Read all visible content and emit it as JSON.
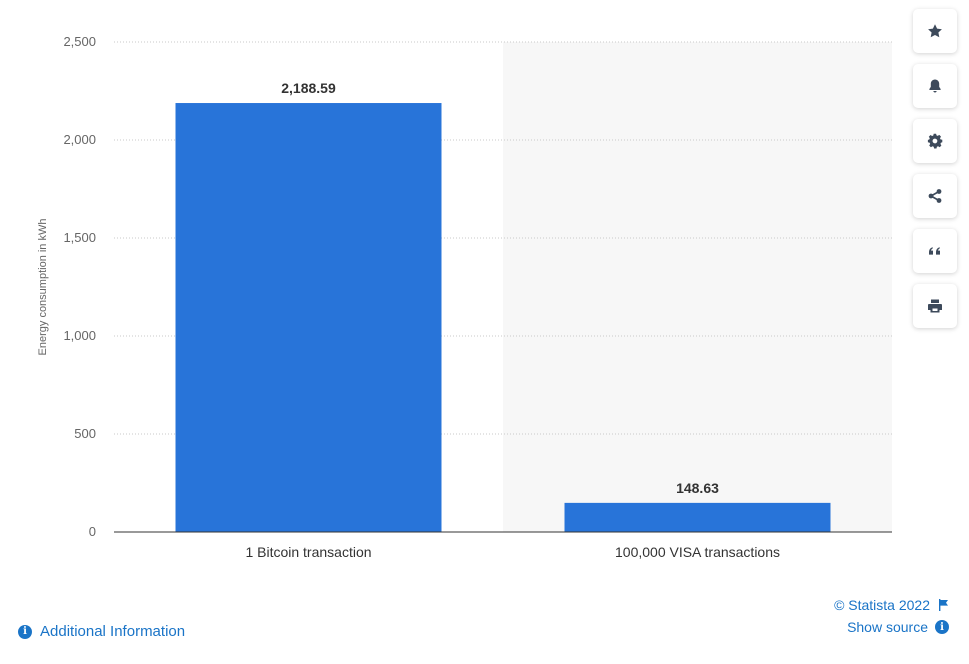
{
  "chart_data": {
    "type": "bar",
    "categories": [
      "1 Bitcoin transaction",
      "100,000 VISA transactions"
    ],
    "values": [
      2188.59,
      148.63
    ],
    "value_labels": [
      "2,188.59",
      "148.63"
    ],
    "ylabel": "Energy consumption in kWh",
    "ylim": [
      0,
      2500
    ],
    "yticks": [
      0,
      500,
      1000,
      1500,
      2000,
      2500
    ],
    "ytick_labels": [
      "0",
      "500",
      "1,000",
      "1,500",
      "2,000",
      "2,500"
    ],
    "grid": true,
    "bar_color": "#2874d9",
    "highlight_band_color": "#f7f7f7"
  },
  "toolbar": {
    "items": [
      {
        "name": "favorite",
        "icon": "star-icon"
      },
      {
        "name": "notify",
        "icon": "bell-icon"
      },
      {
        "name": "settings",
        "icon": "gear-icon"
      },
      {
        "name": "share",
        "icon": "share-icon"
      },
      {
        "name": "cite",
        "icon": "quote-icon"
      },
      {
        "name": "print",
        "icon": "printer-icon"
      }
    ]
  },
  "footer": {
    "copyright": "© Statista 2022",
    "show_source": "Show source",
    "additional_info": "Additional Information",
    "link_color": "#1a74c7"
  }
}
